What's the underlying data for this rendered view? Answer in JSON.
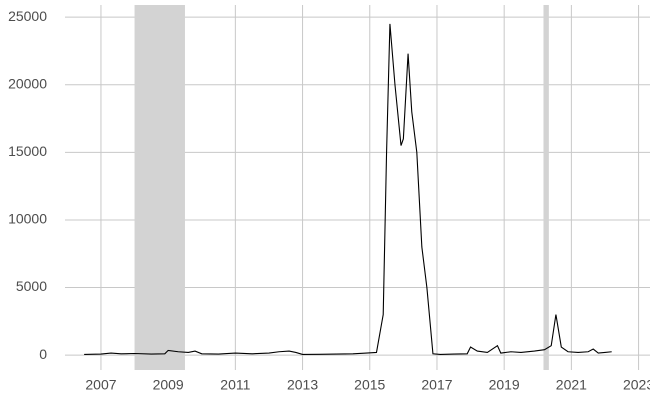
{
  "chart_data": {
    "type": "line",
    "x": [
      2006.5,
      2007.0,
      2007.3,
      2007.6,
      2008.0,
      2008.5,
      2008.9,
      2009.0,
      2009.3,
      2009.6,
      2009.8,
      2010.0,
      2010.5,
      2011.0,
      2011.5,
      2012.0,
      2012.3,
      2012.6,
      2012.8,
      2013.0,
      2013.5,
      2014.0,
      2014.5,
      2014.9,
      2015.2,
      2015.4,
      2015.5,
      2015.6,
      2015.75,
      2015.93,
      2016.0,
      2016.14,
      2016.25,
      2016.4,
      2016.55,
      2016.7,
      2016.88,
      2017.1,
      2017.5,
      2017.9,
      2018.0,
      2018.2,
      2018.5,
      2018.8,
      2018.9,
      2019.2,
      2019.5,
      2019.9,
      2020.2,
      2020.4,
      2020.54,
      2020.7,
      2020.9,
      2021.2,
      2021.5,
      2021.65,
      2021.8,
      2022.0,
      2022.2
    ],
    "series": [
      {
        "color": "#000000",
        "values": [
          50,
          80,
          150,
          100,
          120,
          80,
          100,
          350,
          250,
          200,
          300,
          100,
          80,
          150,
          100,
          150,
          250,
          300,
          200,
          50,
          60,
          80,
          100,
          150,
          200,
          3000,
          15000,
          24500,
          20000,
          15500,
          16000,
          22300,
          18000,
          15000,
          8000,
          5000,
          100,
          50,
          80,
          100,
          600,
          300,
          200,
          700,
          150,
          250,
          200,
          300,
          400,
          700,
          3000,
          600,
          250,
          200,
          250,
          450,
          150,
          200,
          250
        ]
      }
    ],
    "shaded_regions": [
      [
        2008.0,
        2009.5
      ],
      [
        2020.17,
        2020.33
      ]
    ],
    "shade_color": "#d3d3d3",
    "xlim": [
      2005.93,
      2023.34
    ],
    "xticks": [
      2007,
      2009,
      2011,
      2013,
      2015,
      2017,
      2019,
      2021,
      2023
    ],
    "ylim": [
      -1100,
      25900
    ],
    "yticks": [
      0,
      5000,
      10000,
      15000,
      20000,
      25000
    ],
    "grid": true
  }
}
